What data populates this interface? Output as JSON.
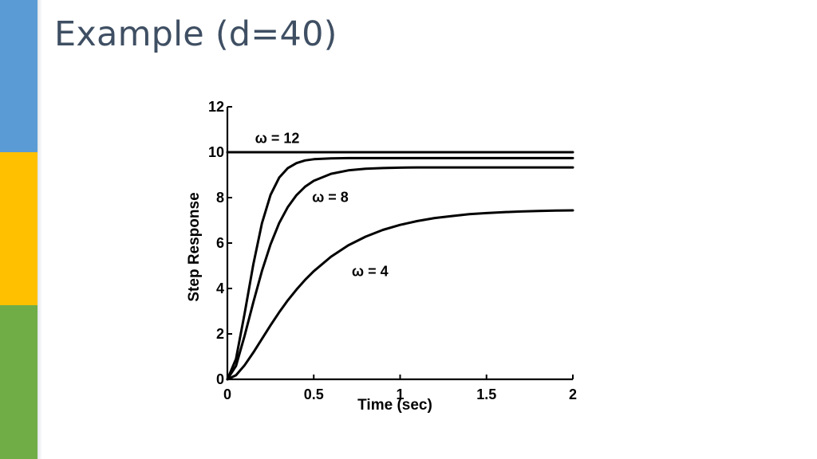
{
  "slide": {
    "title": "Example (d=40)",
    "colors": {
      "stripe_blue": "#5b9bd5",
      "stripe_yellow": "#ffc000",
      "stripe_green": "#70ad47",
      "title": "#3f4f63"
    }
  },
  "chart_data": {
    "type": "line",
    "title": "",
    "xlabel": "Time (sec)",
    "ylabel": "Step Response",
    "xlim": [
      0,
      2
    ],
    "ylim": [
      0,
      12
    ],
    "xticks": [
      0,
      0.5,
      1,
      1.5,
      2
    ],
    "xtick_labels": [
      "0",
      "0.5",
      "1",
      "1.5",
      "2"
    ],
    "yticks": [
      0,
      2,
      4,
      6,
      8,
      10,
      12
    ],
    "ytick_labels": [
      "0",
      "2",
      "4",
      "6",
      "8",
      "10",
      "12"
    ],
    "grid": false,
    "line_color": "#000000",
    "x": [
      0,
      0.05,
      0.1,
      0.15,
      0.2,
      0.25,
      0.3,
      0.35,
      0.4,
      0.45,
      0.5,
      0.6,
      0.7,
      0.8,
      0.9,
      1.0,
      1.1,
      1.2,
      1.3,
      1.4,
      1.5,
      1.6,
      1.7,
      1.8,
      1.9,
      2.0
    ],
    "series": [
      {
        "values": [
          10,
          10,
          10,
          10,
          10,
          10,
          10,
          10,
          10,
          10,
          10,
          10,
          10,
          10,
          10,
          10,
          10,
          10,
          10,
          10,
          10,
          10,
          10,
          10,
          10,
          10
        ]
      },
      {
        "values": [
          0,
          0.9,
          2.9,
          5.06,
          6.87,
          8.12,
          8.88,
          9.3,
          9.52,
          9.64,
          9.69,
          9.73,
          9.74,
          9.74,
          9.74,
          9.74,
          9.74,
          9.74,
          9.74,
          9.74,
          9.74,
          9.74,
          9.74,
          9.74,
          9.74,
          9.74
        ]
      },
      {
        "values": [
          0,
          0.59,
          1.92,
          3.39,
          4.77,
          5.94,
          6.88,
          7.59,
          8.11,
          8.48,
          8.74,
          9.05,
          9.2,
          9.27,
          9.3,
          9.32,
          9.33,
          9.33,
          9.33,
          9.33,
          9.33,
          9.33,
          9.33,
          9.33,
          9.33,
          9.33
        ]
      },
      {
        "values": [
          0,
          0.18,
          0.62,
          1.18,
          1.78,
          2.38,
          2.95,
          3.48,
          3.95,
          4.38,
          4.76,
          5.4,
          5.9,
          6.28,
          6.58,
          6.8,
          6.97,
          7.1,
          7.19,
          7.27,
          7.32,
          7.36,
          7.39,
          7.41,
          7.43,
          7.44
        ]
      }
    ],
    "annotations": [
      {
        "text": "ω = 12",
        "x": 0.16,
        "y": 10.4
      },
      {
        "text": "ω = 8",
        "x": 0.49,
        "y": 7.8
      },
      {
        "text": "ω = 4",
        "x": 0.72,
        "y": 4.55
      }
    ]
  }
}
